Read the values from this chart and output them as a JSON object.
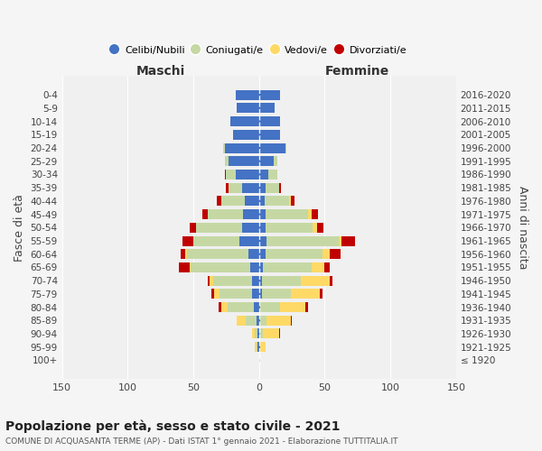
{
  "age_groups": [
    "100+",
    "95-99",
    "90-94",
    "85-89",
    "80-84",
    "75-79",
    "70-74",
    "65-69",
    "60-64",
    "55-59",
    "50-54",
    "45-49",
    "40-44",
    "35-39",
    "30-34",
    "25-29",
    "20-24",
    "15-19",
    "10-14",
    "5-9",
    "0-4"
  ],
  "birth_years": [
    "≤ 1920",
    "1921-1925",
    "1926-1930",
    "1931-1935",
    "1936-1940",
    "1941-1945",
    "1946-1950",
    "1951-1955",
    "1956-1960",
    "1961-1965",
    "1966-1970",
    "1971-1975",
    "1976-1980",
    "1981-1985",
    "1986-1990",
    "1991-1995",
    "1996-2000",
    "2001-2005",
    "2006-2010",
    "2011-2015",
    "2016-2020"
  ],
  "maschi": {
    "celibi": [
      0,
      1,
      1,
      2,
      4,
      5,
      5,
      7,
      8,
      15,
      13,
      12,
      11,
      13,
      18,
      23,
      26,
      20,
      22,
      17,
      18
    ],
    "coniugati": [
      0,
      1,
      2,
      8,
      20,
      25,
      30,
      45,
      47,
      35,
      35,
      27,
      18,
      10,
      7,
      3,
      1,
      0,
      0,
      0,
      0
    ],
    "vedovi": [
      0,
      1,
      2,
      7,
      5,
      4,
      3,
      1,
      1,
      0,
      0,
      0,
      0,
      0,
      0,
      0,
      0,
      0,
      0,
      0,
      0
    ],
    "divorziati": [
      0,
      0,
      0,
      0,
      2,
      2,
      1,
      8,
      4,
      8,
      5,
      4,
      3,
      2,
      1,
      0,
      0,
      0,
      0,
      0,
      0
    ]
  },
  "femmine": {
    "nubili": [
      0,
      1,
      0,
      1,
      1,
      2,
      2,
      3,
      5,
      6,
      5,
      5,
      4,
      5,
      7,
      11,
      20,
      16,
      16,
      12,
      16
    ],
    "coniugate": [
      0,
      0,
      3,
      5,
      15,
      22,
      30,
      37,
      43,
      55,
      36,
      32,
      19,
      10,
      7,
      3,
      1,
      0,
      0,
      0,
      0
    ],
    "vedove": [
      1,
      4,
      12,
      18,
      19,
      22,
      22,
      10,
      6,
      2,
      3,
      3,
      1,
      0,
      0,
      0,
      0,
      0,
      0,
      0,
      0
    ],
    "divorziate": [
      0,
      0,
      1,
      1,
      2,
      2,
      2,
      4,
      8,
      10,
      5,
      5,
      3,
      2,
      0,
      0,
      0,
      0,
      0,
      0,
      0
    ]
  },
  "colors": {
    "celibi": "#4472c4",
    "coniugati": "#c5d8a4",
    "vedovi": "#ffd966",
    "divorziati": "#c00000"
  },
  "title": "Popolazione per età, sesso e stato civile - 2021",
  "subtitle": "COMUNE DI ACQUASANTA TERME (AP) - Dati ISTAT 1° gennaio 2021 - Elaborazione TUTTITALIA.IT",
  "xlabel_left": "Maschi",
  "xlabel_right": "Femmine",
  "ylabel_left": "Fasce di età",
  "ylabel_right": "Anni di nascita",
  "legend_labels": [
    "Celibi/Nubili",
    "Coniugati/e",
    "Vedovi/e",
    "Divorziati/e"
  ],
  "xlim": 150,
  "bg_color": "#f5f5f5",
  "plot_bg": "#f0f0f0"
}
